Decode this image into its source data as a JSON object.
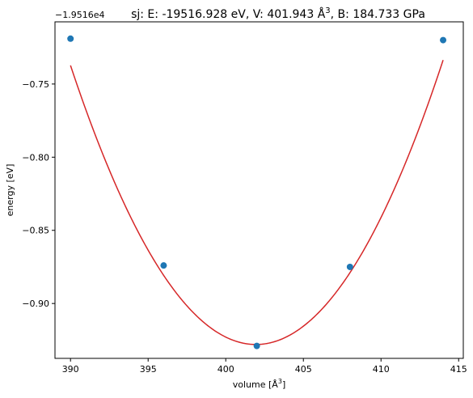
{
  "chart_data": {
    "type": "scatter",
    "title_prefix": "sj: E: -19516.928 eV, V: 401.943 Å",
    "title_sup": "3",
    "title_suffix": ", B: 184.733 GPa",
    "y_offset_label": "−1.9516e4",
    "xlabel_prefix": "volume [Å",
    "xlabel_sup": "3",
    "xlabel_suffix": "]",
    "ylabel": "energy [eV]",
    "xlim": [
      389,
      415.3
    ],
    "ylim": [
      -0.9375,
      -0.7075
    ],
    "xticks": [
      390,
      395,
      400,
      405,
      410,
      415
    ],
    "yticks": [
      -0.75,
      -0.8,
      -0.85,
      -0.9
    ],
    "xtick_labels": [
      "390",
      "395",
      "400",
      "405",
      "410",
      "415"
    ],
    "ytick_labels": [
      "−0.75",
      "−0.80",
      "−0.85",
      "−0.90"
    ],
    "points": {
      "x": [
        390.0,
        396.0,
        402.0,
        408.0,
        414.0
      ],
      "y": [
        -0.719,
        -0.874,
        -0.929,
        -0.875,
        -0.72
      ]
    },
    "fit": {
      "v0": 401.943,
      "e0": -0.928,
      "a": 0.001337
    },
    "colors": {
      "points": "#1f77b4",
      "fit": "#d62728",
      "axes": "#000000"
    },
    "grid": false,
    "legend": false
  }
}
